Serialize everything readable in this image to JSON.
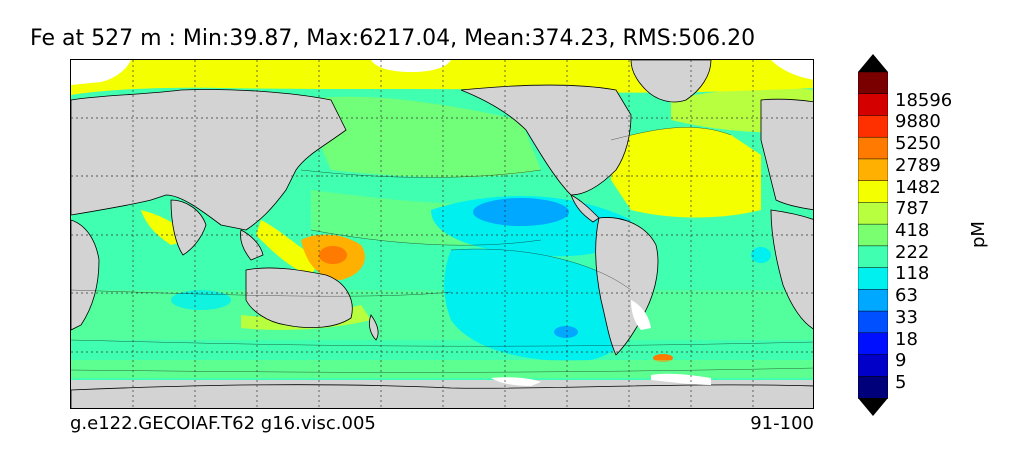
{
  "title": "Fe at 527 m : Min:39.87, Max:6217.04, Mean:374.23, RMS:506.20",
  "caption_left": "g.e122.GECOIAF.T62 g16.visc.005",
  "caption_right": "91-100",
  "colorbar": {
    "unit": "pM",
    "labels": [
      "18596",
      "9880",
      "5250",
      "2789",
      "1482",
      "787",
      "418",
      "222",
      "118",
      "63",
      "33",
      "18",
      "9",
      "5"
    ],
    "colors": [
      "#000000",
      "#7a0000",
      "#d40000",
      "#ff3000",
      "#ff7a00",
      "#ffb000",
      "#f4ff00",
      "#b8ff40",
      "#7aff70",
      "#40ffb0",
      "#00f0f0",
      "#00a8ff",
      "#0050ff",
      "#0010ff",
      "#0000c8",
      "#00007a",
      "#000000"
    ]
  },
  "map": {
    "land_color": "#d3d3d3",
    "ice_color": "#ffffff",
    "grid": "dotted"
  }
}
